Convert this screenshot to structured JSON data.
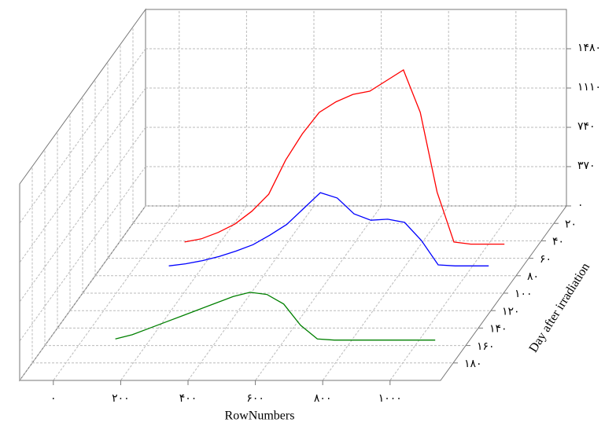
{
  "chart_data": {
    "type": "waterfall3d",
    "x_label": "RowNumbers",
    "z_label": "Day after irradiation",
    "xlim": [
      -100,
      1150
    ],
    "ylim": [
      0,
      1850
    ],
    "zlim": [
      0,
      200
    ],
    "xticks": [
      {
        "value": 0,
        "label": "۰"
      },
      {
        "value": 200,
        "label": "۲۰۰"
      },
      {
        "value": 400,
        "label": "۴۰۰"
      },
      {
        "value": 600,
        "label": "۶۰۰"
      },
      {
        "value": 800,
        "label": "۸۰۰"
      },
      {
        "value": 1000,
        "label": "۱۰۰۰"
      }
    ],
    "yticks": [
      {
        "value": 0,
        "label": "۰"
      },
      {
        "value": 370,
        "label": "۳۷۰"
      },
      {
        "value": 740,
        "label": "۷۴۰"
      },
      {
        "value": 1110,
        "label": "۱۱۱۰"
      },
      {
        "value": 1480,
        "label": "۱۴۸۰"
      }
    ],
    "zticks": [
      {
        "value": 20,
        "label": "۲۰"
      },
      {
        "value": 40,
        "label": "۴۰"
      },
      {
        "value": 60,
        "label": "۶۰"
      },
      {
        "value": 80,
        "label": "۸۰"
      },
      {
        "value": 100,
        "label": "۱۰۰"
      },
      {
        "value": 120,
        "label": "۱۲۰"
      },
      {
        "value": 140,
        "label": "۱۴۰"
      },
      {
        "value": 160,
        "label": "۱۶۰"
      },
      {
        "value": 180,
        "label": "۱۸۰"
      }
    ],
    "grid": true,
    "x": [
      100,
      150,
      200,
      250,
      300,
      350,
      400,
      450,
      500,
      550,
      600,
      650,
      700,
      750,
      800,
      850,
      900,
      950,
      1000,
      1050
    ],
    "series": [
      {
        "color": "#ff0000",
        "z": 45,
        "values": [
          30,
          60,
          120,
          200,
          320,
          480,
          800,
          1050,
          1250,
          1350,
          1420,
          1450,
          1550,
          1650,
          1250,
          500,
          30,
          10,
          10,
          10
        ]
      },
      {
        "color": "#0000ff",
        "z": 70,
        "values": [
          10,
          30,
          60,
          100,
          150,
          210,
          300,
          400,
          550,
          700,
          650,
          500,
          440,
          450,
          420,
          250,
          20,
          10,
          10,
          10
        ]
      },
      {
        "color": "#008000",
        "z": 155,
        "values": [
          20,
          60,
          120,
          180,
          240,
          300,
          360,
          420,
          460,
          440,
          350,
          150,
          20,
          10,
          10,
          10,
          10,
          10,
          10,
          10
        ]
      }
    ]
  }
}
